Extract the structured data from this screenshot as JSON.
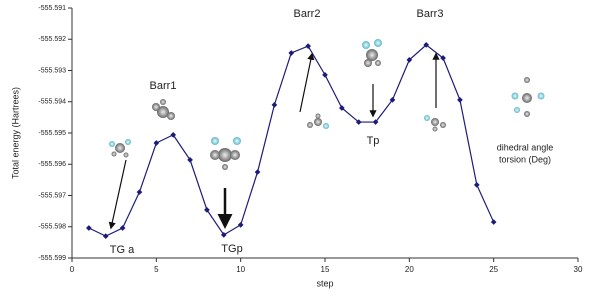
{
  "chart_data": {
    "type": "line",
    "x_label": "step",
    "y_label": "Total energy (Hartrees)",
    "x": [
      1,
      2,
      3,
      4,
      5,
      6,
      7,
      8,
      9,
      10,
      11,
      12,
      13,
      14,
      15,
      16,
      17,
      18,
      19,
      20,
      21,
      22,
      23,
      24,
      25
    ],
    "series": [
      {
        "color": "#1c1c78",
        "values": [
          -555.59804,
          -555.5983,
          -555.59804,
          -555.59689,
          -555.59532,
          -555.59506,
          -555.59586,
          -555.59746,
          -555.59826,
          -555.59794,
          -555.59625,
          -555.5941,
          -555.59244,
          -555.59222,
          -555.59314,
          -555.5942,
          -555.59465,
          -555.59465,
          -555.59394,
          -555.59266,
          -555.59218,
          -555.5926,
          -555.59394,
          -555.59666,
          -555.59785
        ]
      }
    ],
    "xlim": [
      0,
      30
    ],
    "xticks": [
      0,
      5,
      10,
      15,
      20,
      25,
      30
    ],
    "ylim": [
      -555.599,
      -555.591
    ],
    "yticks": [
      -555.591,
      -555.592,
      -555.593,
      -555.594,
      -555.595,
      -555.596,
      -555.597,
      -555.598,
      -555.599
    ],
    "annotations": [
      "Barr1",
      "Barr2",
      "Barr3",
      "TG a",
      "TGp",
      "Tp",
      "dihedral angle",
      "torsion (Deg)"
    ]
  }
}
